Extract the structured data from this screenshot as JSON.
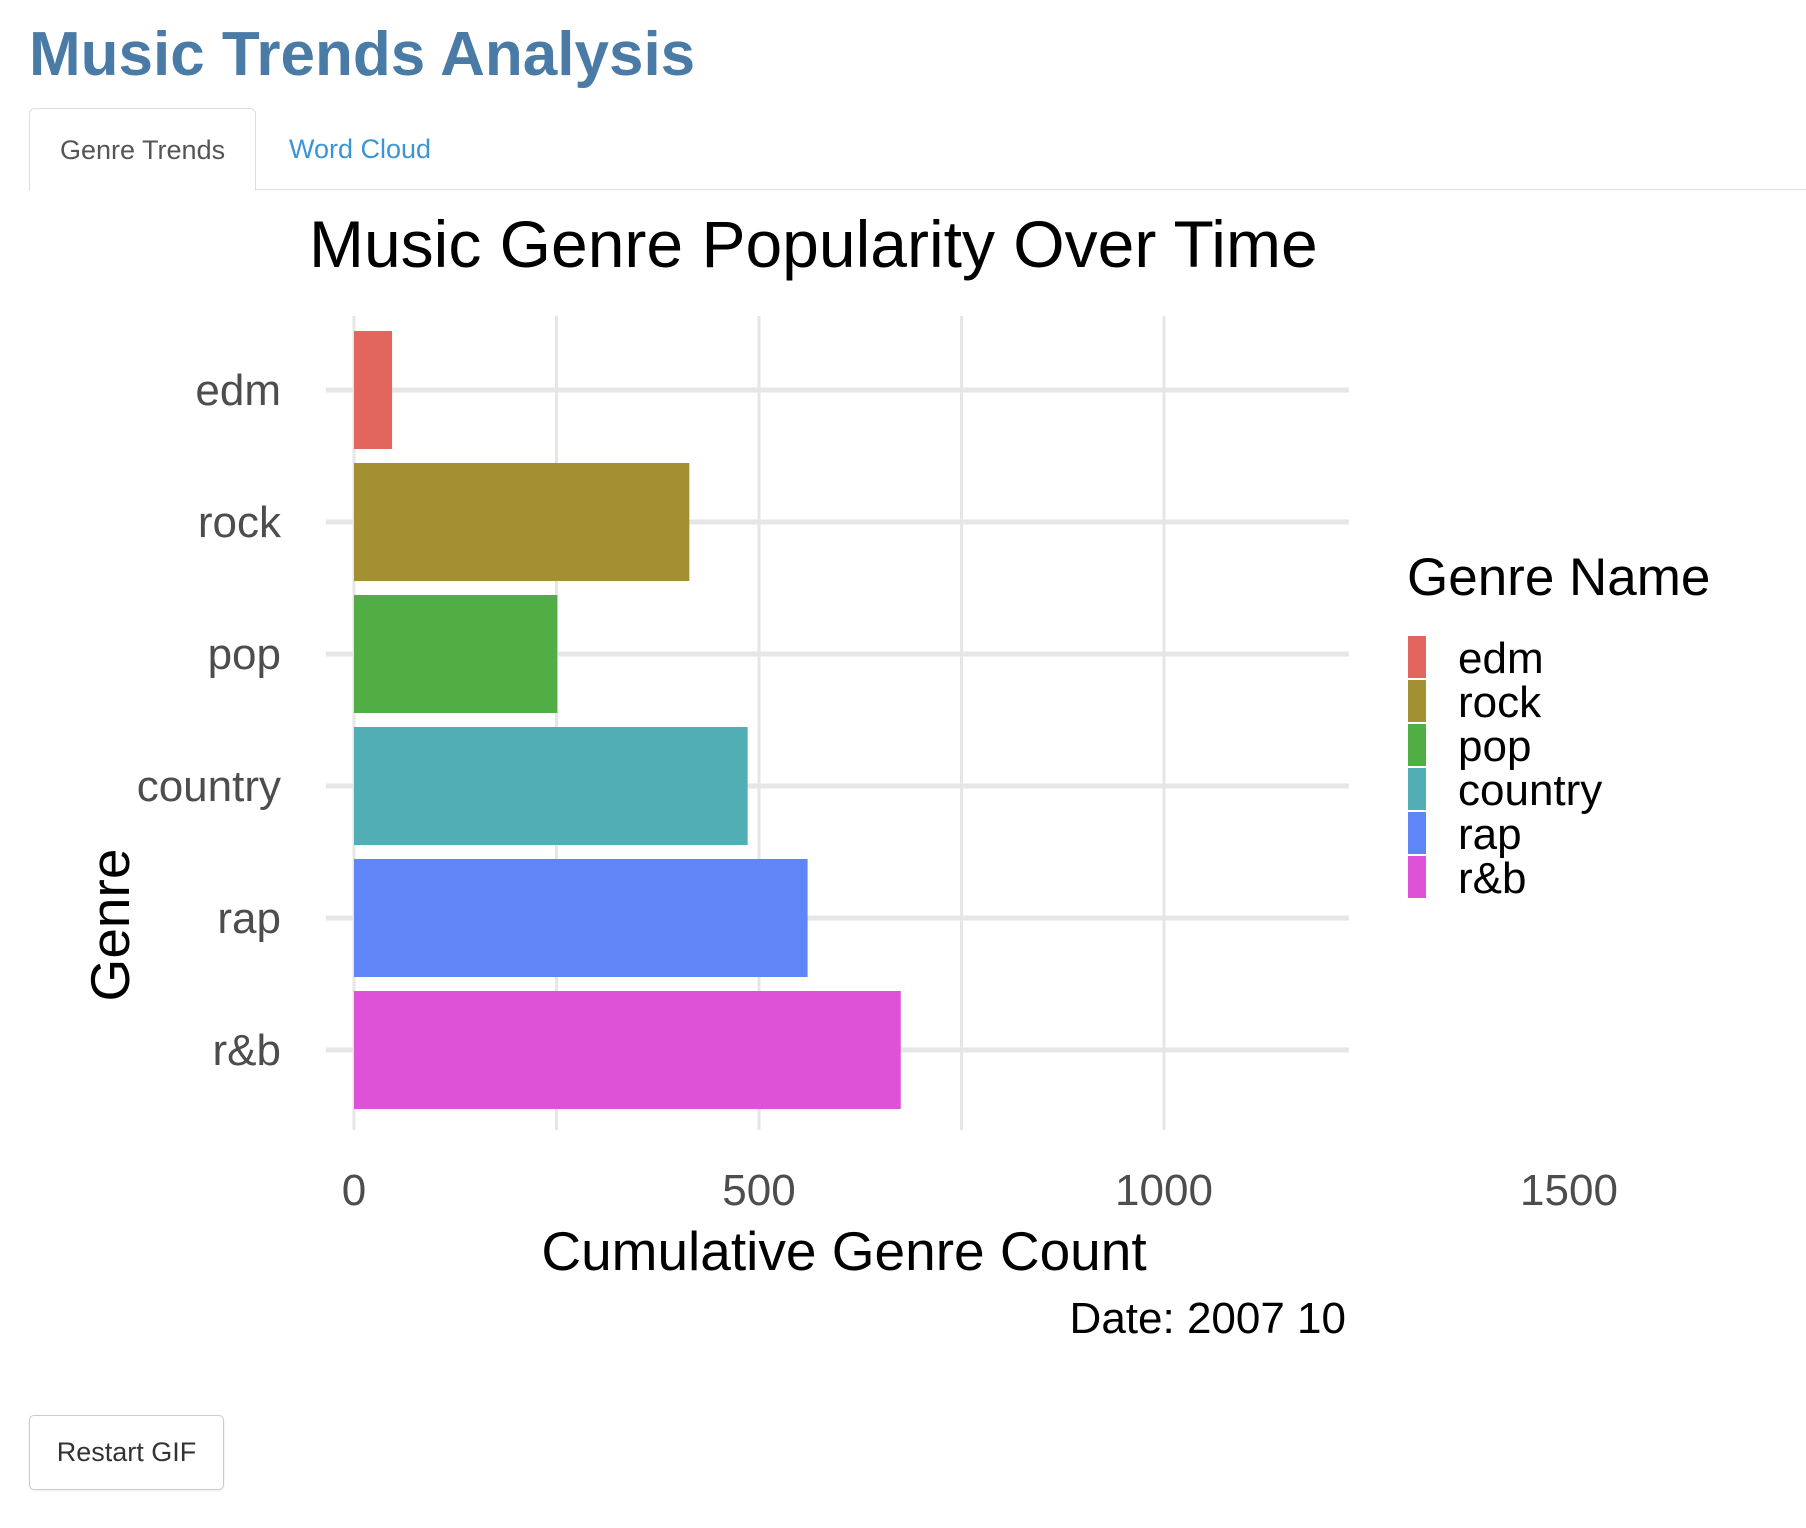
{
  "app": {
    "title": "Music Trends Analysis"
  },
  "tabs": [
    {
      "label": "Genre Trends",
      "active": true
    },
    {
      "label": "Word Cloud",
      "active": false
    }
  ],
  "colors": {
    "title": "#4a7ba6",
    "active_tab_text": "#555555",
    "inactive_tab_text": "#3a95d6",
    "gridline": "#e6e6e6"
  },
  "chart_data": {
    "type": "bar",
    "orientation": "horizontal",
    "title": "Music Genre Popularity Over Time",
    "xlabel": "Cumulative Genre Count",
    "ylabel": "Genre",
    "categories": [
      "edm",
      "rock",
      "pop",
      "country",
      "rap",
      "r&b"
    ],
    "values": [
      47,
      414,
      251,
      486,
      560,
      675
    ],
    "colors": [
      "#e2655e",
      "#a39032",
      "#51ae44",
      "#52aeb5",
      "#5f85f6",
      "#dd52d6"
    ],
    "xlim": [
      0,
      1750
    ],
    "xticks": [
      0,
      500,
      1000,
      1500
    ],
    "xtick_labels": [
      "0",
      "500",
      "1000",
      "1500"
    ],
    "grid": true,
    "legend": {
      "title": "Genre Name",
      "position": "right",
      "entries": [
        "edm",
        "rock",
        "pop",
        "country",
        "rap",
        "r&b"
      ]
    },
    "caption": "Date: 2007 10"
  },
  "controls": {
    "restart_label": "Restart GIF"
  }
}
